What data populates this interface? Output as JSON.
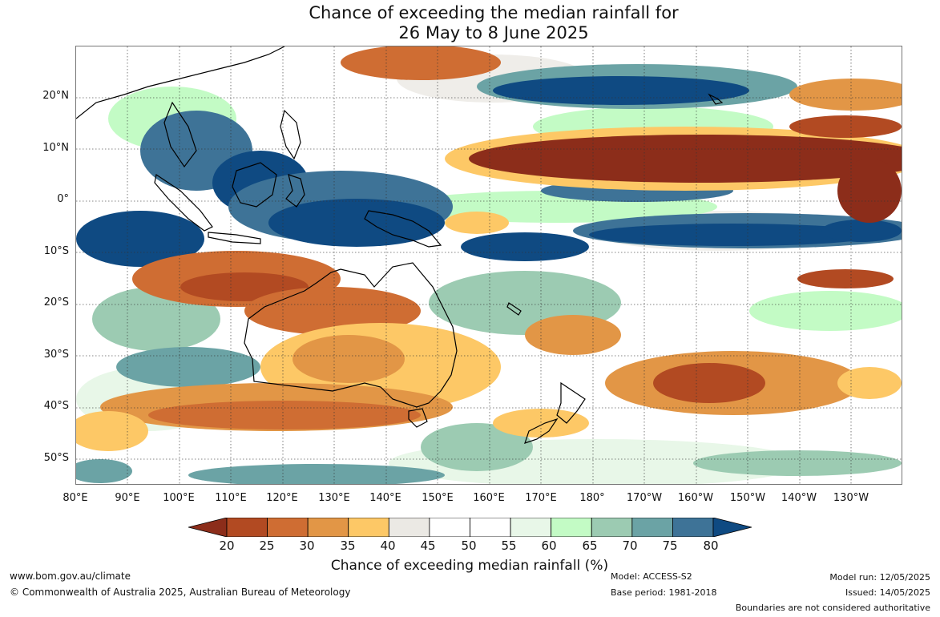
{
  "header": {
    "title_line1": "Chance of exceeding the median rainfall for",
    "title_line2": "26 May to 8 June 2025"
  },
  "map": {
    "lat_labels": [
      "20°N",
      "10°N",
      "0°",
      "10°S",
      "20°S",
      "30°S",
      "40°S",
      "50°S"
    ],
    "lon_labels": [
      "80°E",
      "90°E",
      "100°E",
      "110°E",
      "120°E",
      "130°E",
      "140°E",
      "150°E",
      "160°E",
      "170°E",
      "180°",
      "170°W",
      "160°W",
      "150°W",
      "140°W",
      "130°W"
    ],
    "lat_range": [
      -55,
      30
    ],
    "lon_range": [
      80,
      240
    ]
  },
  "colorbar": {
    "ticks": [
      "20",
      "25",
      "30",
      "35",
      "40",
      "45",
      "50",
      "55",
      "60",
      "65",
      "70",
      "75",
      "80"
    ],
    "colors": [
      "#8c2d1a",
      "#b24a22",
      "#cf6d33",
      "#e29646",
      "#fdc866",
      "#ebe9e4",
      "#ffffff",
      "#ffffff",
      "#e8f7e8",
      "#c3fbc5",
      "#9ccbb2",
      "#6ba3a5",
      "#3e7397",
      "#0f4a82"
    ],
    "title": "Chance of exceeding median rainfall (%)"
  },
  "footer": {
    "website": "www.bom.gov.au/climate",
    "copyright": "© Commonwealth of Australia 2025, Australian Bureau of Meteorology",
    "model": "Model: ACCESS-S2",
    "base_period": "Base period: 1981-2018",
    "model_run": "Model run: 12/05/2025",
    "issued": "Issued: 14/05/2025",
    "disclaimer": "Boundaries are not considered authoritative"
  }
}
